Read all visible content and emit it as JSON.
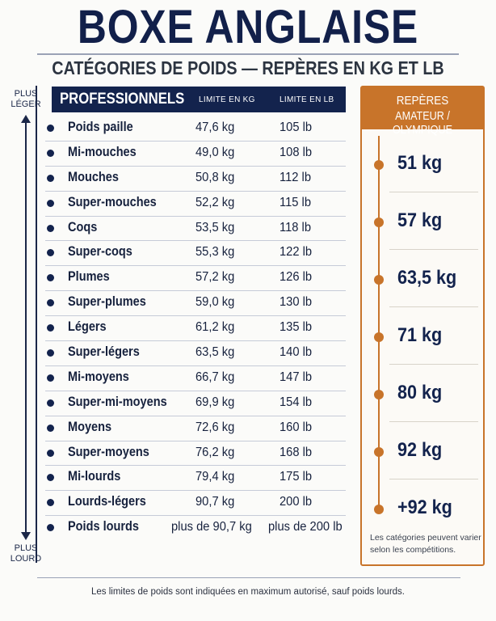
{
  "title": "BOXE ANGLAISE",
  "subtitle": "CATÉGORIES DE POIDS — REPÈRES EN KG ET LB",
  "axis": {
    "top_line1": "PLUS",
    "top_line2": "LÉGER",
    "bottom_line1": "PLUS",
    "bottom_line2": "LOURD"
  },
  "professionals": {
    "header": "PROFESSIONNELS",
    "col_kg": "LIMITE EN KG",
    "col_lb": "LIMITE EN LB",
    "rows": [
      {
        "name": "Poids paille",
        "kg": "47,6 kg",
        "lb": "105 lb"
      },
      {
        "name": "Mi-mouches",
        "kg": "49,0 kg",
        "lb": "108 lb"
      },
      {
        "name": "Mouches",
        "kg": "50,8 kg",
        "lb": "112 lb"
      },
      {
        "name": "Super-mouches",
        "kg": "52,2 kg",
        "lb": "115 lb"
      },
      {
        "name": "Coqs",
        "kg": "53,5 kg",
        "lb": "118 lb"
      },
      {
        "name": "Super-coqs",
        "kg": "55,3 kg",
        "lb": "122 lb"
      },
      {
        "name": "Plumes",
        "kg": "57,2 kg",
        "lb": "126 lb"
      },
      {
        "name": "Super-plumes",
        "kg": "59,0 kg",
        "lb": "130 lb"
      },
      {
        "name": "Légers",
        "kg": "61,2 kg",
        "lb": "135 lb"
      },
      {
        "name": "Super-légers",
        "kg": "63,5 kg",
        "lb": "140 lb"
      },
      {
        "name": "Mi-moyens",
        "kg": "66,7 kg",
        "lb": "147 lb"
      },
      {
        "name": "Super-mi-moyens",
        "kg": "69,9 kg",
        "lb": "154 lb"
      },
      {
        "name": "Moyens",
        "kg": "72,6 kg",
        "lb": "160 lb"
      },
      {
        "name": "Super-moyens",
        "kg": "76,2 kg",
        "lb": "168 lb"
      },
      {
        "name": "Mi-lourds",
        "kg": "79,4 kg",
        "lb": "175 lb"
      },
      {
        "name": "Lourds-légers",
        "kg": "90,7 kg",
        "lb": "200 lb"
      },
      {
        "name": "Poids lourds",
        "kg": "plus de 90,7 kg",
        "lb": "plus de 200 lb"
      }
    ]
  },
  "amateur": {
    "header_line1": "REPÈRES",
    "header_line2": "AMATEUR / OLYMPIQUE",
    "values": [
      "51 kg",
      "57 kg",
      "63,5 kg",
      "71 kg",
      "80 kg",
      "92 kg",
      "+92 kg"
    ],
    "note": "Les catégories peuvent varier selon les compétitions."
  },
  "footnote": "Les limites de poids sont indiquées en maximum autorisé, sauf poids lourds.",
  "colors": {
    "navy": "#13234d",
    "orange": "#c8742a"
  }
}
